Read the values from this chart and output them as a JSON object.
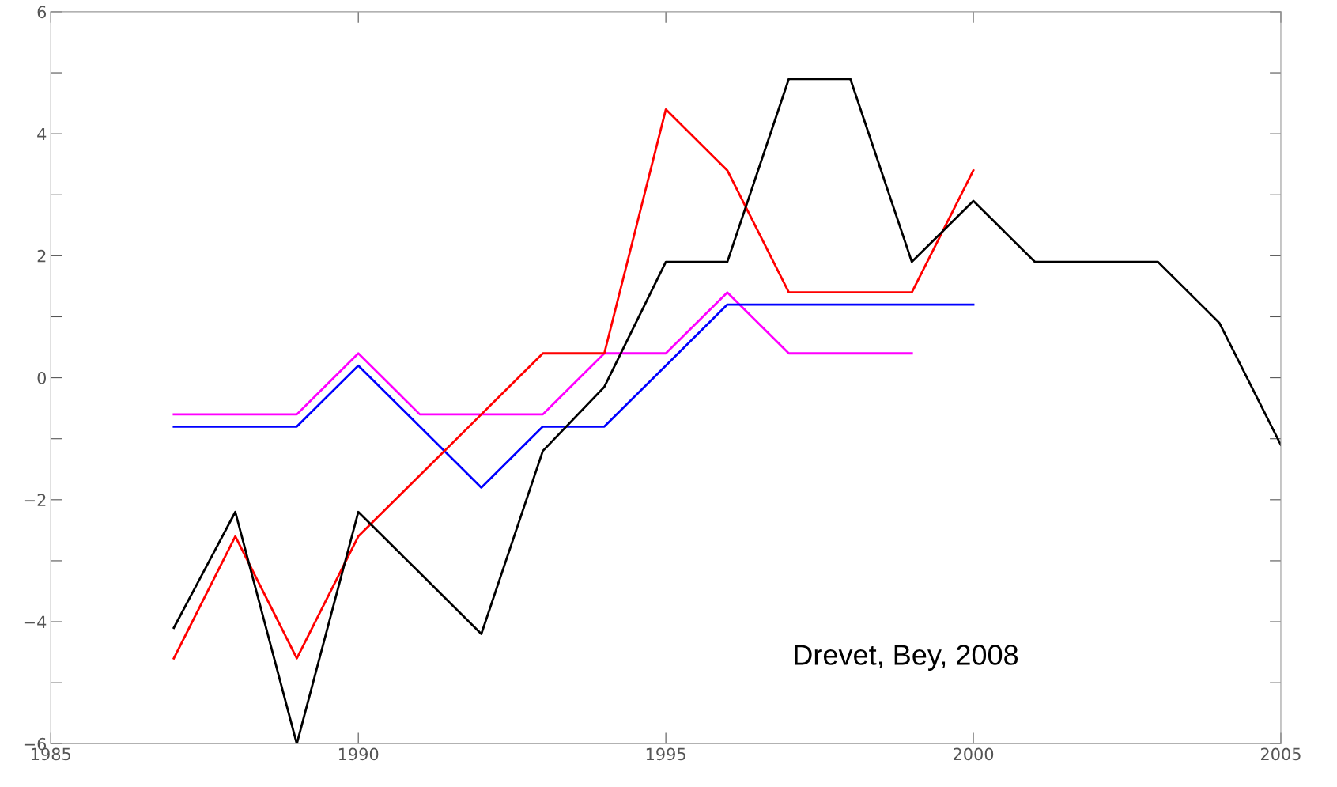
{
  "chart_data": {
    "type": "line",
    "x": [
      1987,
      1988,
      1989,
      1990,
      1991,
      1992,
      1993,
      1994,
      1995,
      1996,
      1997,
      1998,
      1999,
      2000,
      2001,
      2002,
      2003,
      2004,
      2005
    ],
    "series": [
      {
        "color": "#ff00ff",
        "x": [
          1987,
          1988,
          1989,
          1990,
          1991,
          1992,
          1993,
          1994,
          1995,
          1996,
          1997,
          1998,
          1999
        ],
        "values": [
          -0.6,
          -0.6,
          -0.6,
          0.4,
          -0.6,
          -0.6,
          -0.6,
          0.4,
          0.4,
          1.4,
          0.4,
          0.4,
          0.4
        ]
      },
      {
        "color": "#0000ff",
        "x": [
          1987,
          1988,
          1989,
          1990,
          1991,
          1992,
          1993,
          1994,
          1995,
          1996,
          1997,
          1998,
          1999,
          2000
        ],
        "values": [
          -0.8,
          -0.8,
          -0.8,
          0.2,
          -0.8,
          -1.8,
          -0.8,
          -0.8,
          0.2,
          1.2,
          1.2,
          1.2,
          1.2,
          1.2
        ]
      },
      {
        "color": "#ff0000",
        "x": [
          1987,
          1988,
          1989,
          1990,
          1991,
          1992,
          1993,
          1994,
          1995,
          1996,
          1997,
          1998,
          1999,
          2000
        ],
        "values": [
          -4.6,
          -2.6,
          -4.6,
          -2.6,
          -1.6,
          -0.6,
          0.4,
          0.4,
          4.4,
          3.4,
          1.4,
          1.4,
          1.4,
          3.4
        ]
      },
      {
        "color": "#000000",
        "values": [
          -4.1,
          -2.2,
          -6.0,
          -2.2,
          -3.2,
          -4.2,
          -1.2,
          -0.15,
          1.9,
          1.9,
          4.9,
          4.9,
          1.9,
          2.9,
          1.9,
          1.9,
          1.9,
          0.9,
          -1.1
        ]
      }
    ],
    "xlim": [
      1985,
      2005
    ],
    "xticks": [
      1985,
      1990,
      1995,
      2000,
      2005
    ],
    "ylim": [
      -6,
      6
    ],
    "yticks": [
      {
        "value": -6,
        "label": "−6"
      },
      {
        "value": -5,
        "label": null
      },
      {
        "value": -4,
        "label": "−4"
      },
      {
        "value": -3,
        "label": null
      },
      {
        "value": -2,
        "label": "−2"
      },
      {
        "value": -1,
        "label": null
      },
      0,
      {
        "value": 1,
        "label": null
      },
      2,
      {
        "value": 3,
        "label": null
      },
      4,
      {
        "value": 5,
        "label": null
      },
      6
    ],
    "annotations": [
      "Drevet, Bey, 2008"
    ],
    "grid": false,
    "legend": false,
    "marker": "none",
    "line_style": "solid"
  }
}
